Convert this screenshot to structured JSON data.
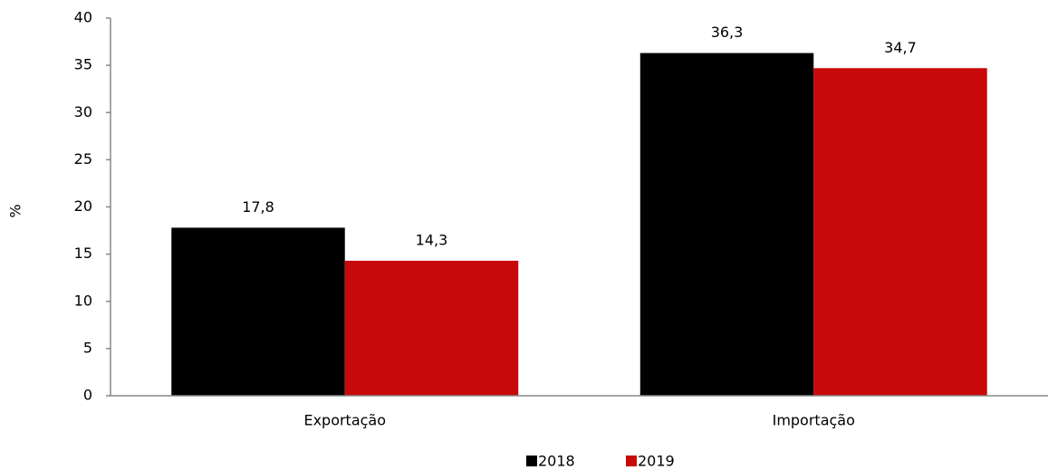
{
  "chart_data": {
    "type": "bar",
    "y_label": "%",
    "categories": [
      "Exportação",
      "Importação"
    ],
    "series": [
      {
        "name": "2018",
        "color": "#000000",
        "values": [
          17.8,
          36.3
        ],
        "value_labels": [
          "17,8",
          "36,3"
        ]
      },
      {
        "name": "2019",
        "color": "#c8090a",
        "values": [
          14.3,
          34.7
        ],
        "value_labels": [
          "14,3",
          "34,7"
        ]
      }
    ],
    "ylim": [
      0,
      40
    ],
    "yticks": [
      0,
      5,
      10,
      15,
      20,
      25,
      30,
      35,
      40
    ],
    "grid": false,
    "legend": "bottom"
  }
}
